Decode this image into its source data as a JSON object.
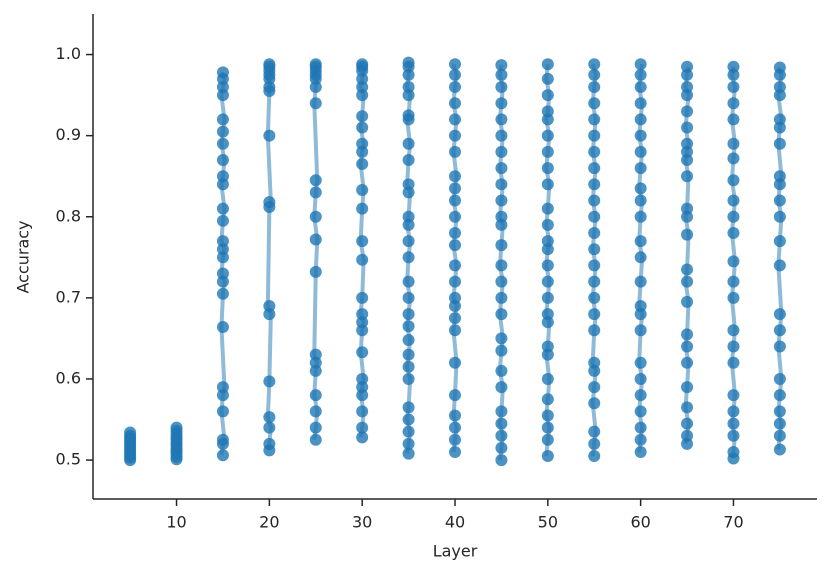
{
  "chart_data": {
    "type": "strip",
    "x_label": "Layer",
    "y_label": "Accuracy",
    "color": "#1f77b4",
    "xlim": [
      1,
      79
    ],
    "ylim": [
      0.452,
      1.05
    ],
    "xticks": [
      10,
      20,
      30,
      40,
      50,
      60,
      70
    ],
    "yticks": [
      0.5,
      0.6,
      0.7,
      0.8,
      0.9,
      {
        "value": 1,
        "label": "1.0"
      }
    ],
    "x": [
      5,
      10,
      15,
      20,
      25,
      30,
      35,
      40,
      45,
      50,
      55,
      60,
      65,
      70,
      75
    ],
    "values": [
      [
        0.5,
        0.503,
        0.506,
        0.509,
        0.512,
        0.515,
        0.518,
        0.521,
        0.524,
        0.527,
        0.53,
        0.534
      ],
      [
        0.501,
        0.504,
        0.508,
        0.511,
        0.514,
        0.518,
        0.521,
        0.525,
        0.528,
        0.532,
        0.536,
        0.54
      ],
      [
        0.506,
        0.52,
        0.525,
        0.56,
        0.58,
        0.59,
        0.664,
        0.705,
        0.72,
        0.73,
        0.75,
        0.76,
        0.77,
        0.795,
        0.81,
        0.84,
        0.85,
        0.87,
        0.89,
        0.905,
        0.92,
        0.95,
        0.96,
        0.97,
        0.978
      ],
      [
        0.512,
        0.52,
        0.54,
        0.553,
        0.597,
        0.68,
        0.69,
        0.812,
        0.818,
        0.9,
        0.955,
        0.96,
        0.97,
        0.975,
        0.98,
        0.985,
        0.988
      ],
      [
        0.525,
        0.54,
        0.56,
        0.58,
        0.61,
        0.62,
        0.63,
        0.732,
        0.772,
        0.8,
        0.83,
        0.845,
        0.94,
        0.96,
        0.97,
        0.975,
        0.98,
        0.985,
        0.988
      ],
      [
        0.528,
        0.54,
        0.56,
        0.58,
        0.59,
        0.6,
        0.633,
        0.66,
        0.67,
        0.68,
        0.7,
        0.747,
        0.77,
        0.81,
        0.833,
        0.865,
        0.88,
        0.89,
        0.91,
        0.924,
        0.95,
        0.96,
        0.97,
        0.98,
        0.985,
        0.988
      ],
      [
        0.508,
        0.52,
        0.535,
        0.55,
        0.565,
        0.6,
        0.615,
        0.63,
        0.648,
        0.665,
        0.68,
        0.7,
        0.72,
        0.75,
        0.77,
        0.79,
        0.8,
        0.83,
        0.84,
        0.87,
        0.89,
        0.92,
        0.925,
        0.95,
        0.96,
        0.975,
        0.985,
        0.99
      ],
      [
        0.51,
        0.525,
        0.54,
        0.555,
        0.58,
        0.62,
        0.66,
        0.675,
        0.69,
        0.7,
        0.72,
        0.74,
        0.765,
        0.78,
        0.8,
        0.82,
        0.835,
        0.85,
        0.88,
        0.9,
        0.92,
        0.94,
        0.96,
        0.975,
        0.988
      ],
      [
        0.5,
        0.515,
        0.53,
        0.545,
        0.56,
        0.59,
        0.61,
        0.635,
        0.65,
        0.68,
        0.7,
        0.72,
        0.74,
        0.765,
        0.79,
        0.8,
        0.82,
        0.84,
        0.86,
        0.88,
        0.9,
        0.92,
        0.94,
        0.96,
        0.975,
        0.987
      ],
      [
        0.505,
        0.525,
        0.54,
        0.555,
        0.575,
        0.6,
        0.63,
        0.64,
        0.67,
        0.68,
        0.7,
        0.72,
        0.74,
        0.76,
        0.77,
        0.79,
        0.81,
        0.84,
        0.86,
        0.88,
        0.9,
        0.92,
        0.93,
        0.95,
        0.97,
        0.988
      ],
      [
        0.505,
        0.52,
        0.535,
        0.57,
        0.59,
        0.61,
        0.62,
        0.66,
        0.68,
        0.7,
        0.72,
        0.74,
        0.76,
        0.78,
        0.8,
        0.82,
        0.84,
        0.86,
        0.88,
        0.9,
        0.92,
        0.94,
        0.96,
        0.975,
        0.988
      ],
      [
        0.51,
        0.525,
        0.54,
        0.56,
        0.58,
        0.6,
        0.62,
        0.66,
        0.68,
        0.69,
        0.72,
        0.75,
        0.77,
        0.8,
        0.82,
        0.835,
        0.86,
        0.88,
        0.9,
        0.92,
        0.94,
        0.96,
        0.975,
        0.988
      ],
      [
        0.52,
        0.53,
        0.545,
        0.565,
        0.59,
        0.62,
        0.64,
        0.655,
        0.695,
        0.72,
        0.735,
        0.778,
        0.8,
        0.81,
        0.85,
        0.87,
        0.88,
        0.89,
        0.91,
        0.93,
        0.95,
        0.96,
        0.975,
        0.985
      ],
      [
        0.502,
        0.51,
        0.53,
        0.545,
        0.56,
        0.58,
        0.62,
        0.64,
        0.66,
        0.7,
        0.72,
        0.745,
        0.78,
        0.8,
        0.82,
        0.845,
        0.872,
        0.89,
        0.92,
        0.94,
        0.96,
        0.975,
        0.985
      ],
      [
        0.513,
        0.53,
        0.545,
        0.56,
        0.58,
        0.6,
        0.64,
        0.66,
        0.68,
        0.74,
        0.77,
        0.8,
        0.82,
        0.84,
        0.85,
        0.89,
        0.91,
        0.92,
        0.95,
        0.96,
        0.975,
        0.984
      ]
    ]
  }
}
